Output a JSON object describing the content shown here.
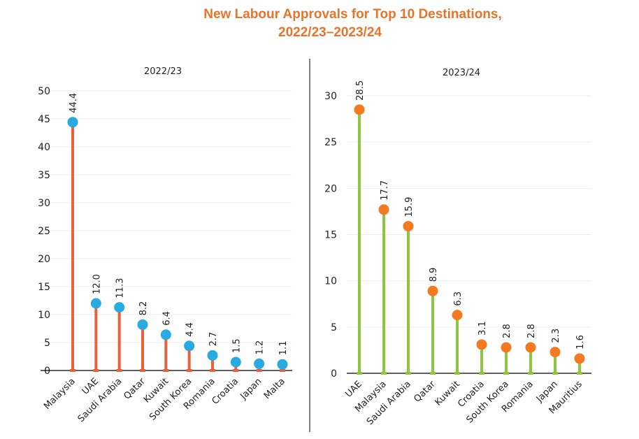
{
  "title": {
    "line1": "New Labour Approvals for Top 10 Destinations,",
    "line2": "2022/23–2023/24"
  },
  "colors": {
    "title": "#e8732a",
    "left_stem": "#e8603c",
    "left_marker": "#29abe2",
    "right_stem": "#8dc63f",
    "right_marker": "#f37a21",
    "grid": "#eeeeee",
    "divider": "#000000"
  },
  "chart_data": [
    {
      "type": "lollipop",
      "title": "2022/23",
      "categories": [
        "Malaysia",
        "UAE",
        "Saudi Arabia",
        "Qatar",
        "Kuwait",
        "South Korea",
        "Romania",
        "Croatia",
        "Japan",
        "Malta"
      ],
      "values": [
        44.4,
        12.0,
        11.3,
        8.2,
        6.4,
        4.4,
        2.7,
        1.5,
        1.2,
        1.1
      ],
      "labels": [
        "44.4",
        "12.0",
        "11.3",
        "8.2",
        "6.4",
        "4.4",
        "2.7",
        "1.5",
        "1.2",
        "1.1"
      ],
      "ylim": [
        0,
        50
      ],
      "yticks": [
        0,
        5,
        10,
        15,
        20,
        25,
        30,
        35,
        40,
        45,
        50
      ],
      "xlabel": "",
      "ylabel": "",
      "grid": true
    },
    {
      "type": "lollipop",
      "title": "2023/24",
      "categories": [
        "UAE",
        "Malaysia",
        "Saudi Arabia",
        "Qatar",
        "Kuwait",
        "Croatia",
        "South Korea",
        "Romania",
        "Japan",
        "Mauritius"
      ],
      "values": [
        28.5,
        17.7,
        15.9,
        8.9,
        6.3,
        3.1,
        2.8,
        2.8,
        2.3,
        1.6
      ],
      "labels": [
        "28.5",
        "17.7",
        "15.9",
        "8.9",
        "6.3",
        "3.1",
        "2.8",
        "2.8",
        "2.3",
        "1.6"
      ],
      "ylim": [
        0,
        30
      ],
      "yticks": [
        0,
        5,
        10,
        15,
        20,
        25,
        30
      ],
      "xlabel": "",
      "ylabel": "",
      "grid": true
    }
  ]
}
